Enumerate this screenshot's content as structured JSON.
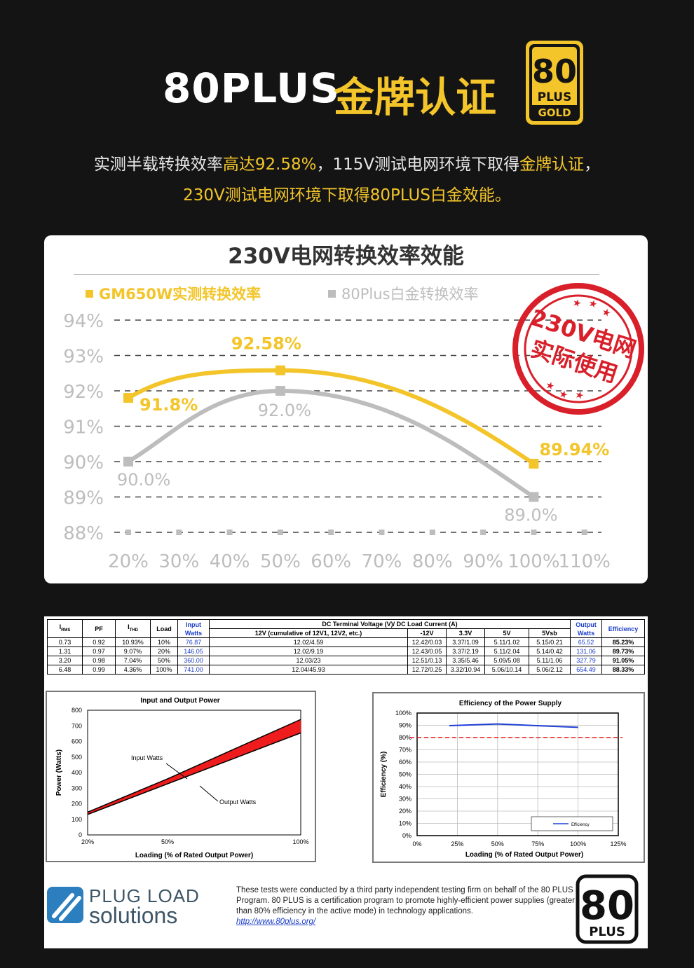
{
  "hero": {
    "title_white": "80PLUS",
    "title_gold": "金牌认证",
    "badge": {
      "top": "80",
      "mid": "PLUS",
      "bottom": "GOLD"
    }
  },
  "subtitle": {
    "line1_a": "实测半载转换效率",
    "line1_b": "高达92.58%",
    "line1_c": "，115V测试电网环境下取得",
    "line1_d": "金牌认证",
    "line1_e": "，",
    "line2": "230V测试电网环境下取得80PLUS白金效能。"
  },
  "stamp": {
    "line1": "230V电网",
    "line2": "实际使用"
  },
  "colors": {
    "gold": "#f3c52a",
    "gray": "#bdbdbd",
    "stamp": "#d81f2a"
  },
  "chart_data": [
    {
      "type": "line",
      "title": "230V电网转换效率效能",
      "categories": [
        "20%",
        "30%",
        "40%",
        "50%",
        "60%",
        "70%",
        "80%",
        "90%",
        "100%",
        "110%"
      ],
      "y_ticks": [
        "88%",
        "89%",
        "90%",
        "91%",
        "92%",
        "93%",
        "94%"
      ],
      "ylim": [
        88,
        94
      ],
      "grid": true,
      "legend_position": "top-left",
      "series": [
        {
          "name": "GM650W实测转换效率",
          "color": "#f3c52a",
          "x": [
            "20%",
            "50%",
            "100%"
          ],
          "values": [
            91.8,
            92.58,
            89.94
          ],
          "labels": [
            "91.8%",
            "92.58%",
            "89.94%"
          ]
        },
        {
          "name": "80Plus白金转换效率",
          "color": "#bdbdbd",
          "x": [
            "20%",
            "50%",
            "100%"
          ],
          "values": [
            90.0,
            92.0,
            89.0
          ],
          "labels": [
            "90.0%",
            "92.0%",
            "89.0%"
          ]
        }
      ]
    },
    {
      "type": "table",
      "header_top": [
        "I_RMS",
        "PF",
        "I_THD",
        "Load",
        "Input Watts",
        "DC Terminal Voltage (V)/ DC Load Current (A)",
        "Output Watts",
        "Efficiency"
      ],
      "header_sub": [
        "12V (cumulative of 12V1, 12V2, etc.)",
        "-12V",
        "3.3V",
        "5V",
        "5Vsb"
      ],
      "rows": [
        [
          "0.73",
          "0.92",
          "10.93%",
          "10%",
          "76.87",
          "12.02/4.59",
          "12.42/0.03",
          "3.37/1.09",
          "5.11/1.02",
          "5.15/0.21",
          "65.52",
          "85.23%"
        ],
        [
          "1.31",
          "0.97",
          "9.07%",
          "20%",
          "146.05",
          "12.02/9.19",
          "12.43/0.05",
          "3.37/2.19",
          "5.11/2.04",
          "5.14/0.42",
          "131.06",
          "89.73%"
        ],
        [
          "3.20",
          "0.98",
          "7.04%",
          "50%",
          "360.00",
          "12.03/23",
          "12.51/0.13",
          "3.35/5.46",
          "5.09/5.08",
          "5.11/1.06",
          "327.79",
          "91.05%"
        ],
        [
          "6.48",
          "0.99",
          "4.36%",
          "100%",
          "741.00",
          "12.04/45.93",
          "12.72/0.25",
          "3.32/10.94",
          "5.06/10.14",
          "5.06/2.12",
          "654.49",
          "88.33%"
        ]
      ]
    },
    {
      "type": "area",
      "title": "Input and Output Power",
      "xlabel": "Loading (% of Rated Output Power)",
      "ylabel": "Power (Watts)",
      "x_ticks": [
        "20%",
        "50%",
        "100%"
      ],
      "y_ticks": [
        "0",
        "100",
        "200",
        "300",
        "400",
        "500",
        "600",
        "700",
        "800"
      ],
      "x": [
        20,
        50,
        100
      ],
      "ylim": [
        0,
        800
      ],
      "series": [
        {
          "name": "Input Watts",
          "values": [
            146.05,
            360.0,
            741.0
          ]
        },
        {
          "name": "Output Watts",
          "values": [
            131.06,
            327.79,
            654.49
          ]
        }
      ]
    },
    {
      "type": "line",
      "title": "Efficiency of the Power Supply",
      "xlabel": "Loading (% of Rated Output Power)",
      "ylabel": "Efficiency (%)",
      "x_ticks": [
        "0%",
        "25%",
        "50%",
        "75%",
        "100%",
        "125%"
      ],
      "y_ticks": [
        "0%",
        "10%",
        "20%",
        "30%",
        "40%",
        "50%",
        "60%",
        "70%",
        "80%",
        "90%",
        "100%"
      ],
      "xlim": [
        0,
        125
      ],
      "ylim": [
        0,
        100
      ],
      "legend_position": "bottom-right",
      "threshold": 80,
      "series": [
        {
          "name": "Efficiency",
          "x": [
            20,
            50,
            100
          ],
          "values": [
            89.73,
            91.05,
            88.33
          ]
        }
      ]
    }
  ],
  "footer": {
    "text": "These tests were conducted by a third party independent testing firm on behalf of the 80 PLUS Program. 80 PLUS is a certification program to promote highly-efficient power supplies (greater than 80% efficiency in the active mode) in technology applications.",
    "link": "http://www.80plus.org/",
    "logo_line1": "PLUG LOAD",
    "logo_line2": "solutions",
    "badge_top": "80",
    "badge_bottom": "PLUS"
  }
}
